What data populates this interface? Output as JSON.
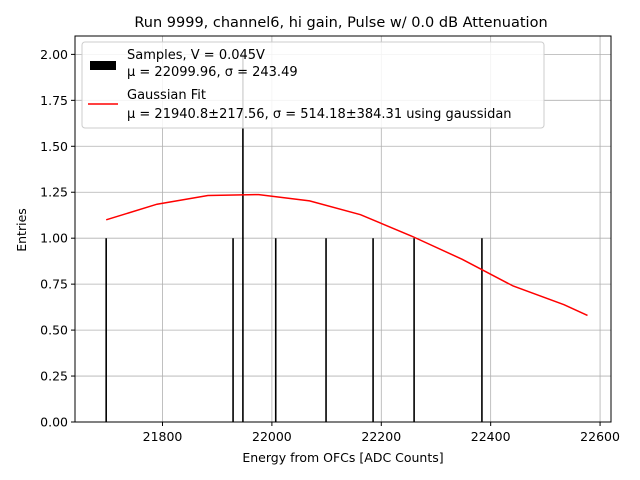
{
  "chart_data": {
    "type": "bar",
    "title": "Run 9999, channel6, hi gain, Pulse w/ 0.0 dB Attenuation",
    "xlabel": "Energy from OFCs [ADC Counts]",
    "ylabel": "Entries",
    "xlim": [
      21640,
      22620
    ],
    "ylim": [
      0,
      2.1
    ],
    "xticks": [
      21800,
      22000,
      22200,
      22400,
      22600
    ],
    "yticks": [
      0.0,
      0.25,
      0.5,
      0.75,
      1.0,
      1.25,
      1.5,
      1.75,
      2.0
    ],
    "grid": true,
    "legend_position": "top-left",
    "series": [
      {
        "name": "Samples, V = 0.045V",
        "stats": "μ = 22099.96, σ = 243.49",
        "kind": "histogram",
        "color": "#000000",
        "x": [
          21697,
          21929,
          21947,
          22007,
          22099,
          22185,
          22260,
          22384
        ],
        "values": [
          1,
          1,
          2,
          1,
          1,
          1,
          1,
          1
        ]
      },
      {
        "name": "Gaussian Fit",
        "stats": "μ = 21940.8±217.56, σ = 514.18±384.31 using gaussidan",
        "kind": "line",
        "color": "#ff0000",
        "x": [
          21697,
          21790,
          21883,
          21976,
          22069,
          22162,
          22255,
          22348,
          22441,
          22534,
          22577
        ],
        "values": [
          1.1,
          1.185,
          1.232,
          1.237,
          1.203,
          1.128,
          1.012,
          0.885,
          0.74,
          0.638,
          0.58
        ]
      }
    ]
  }
}
